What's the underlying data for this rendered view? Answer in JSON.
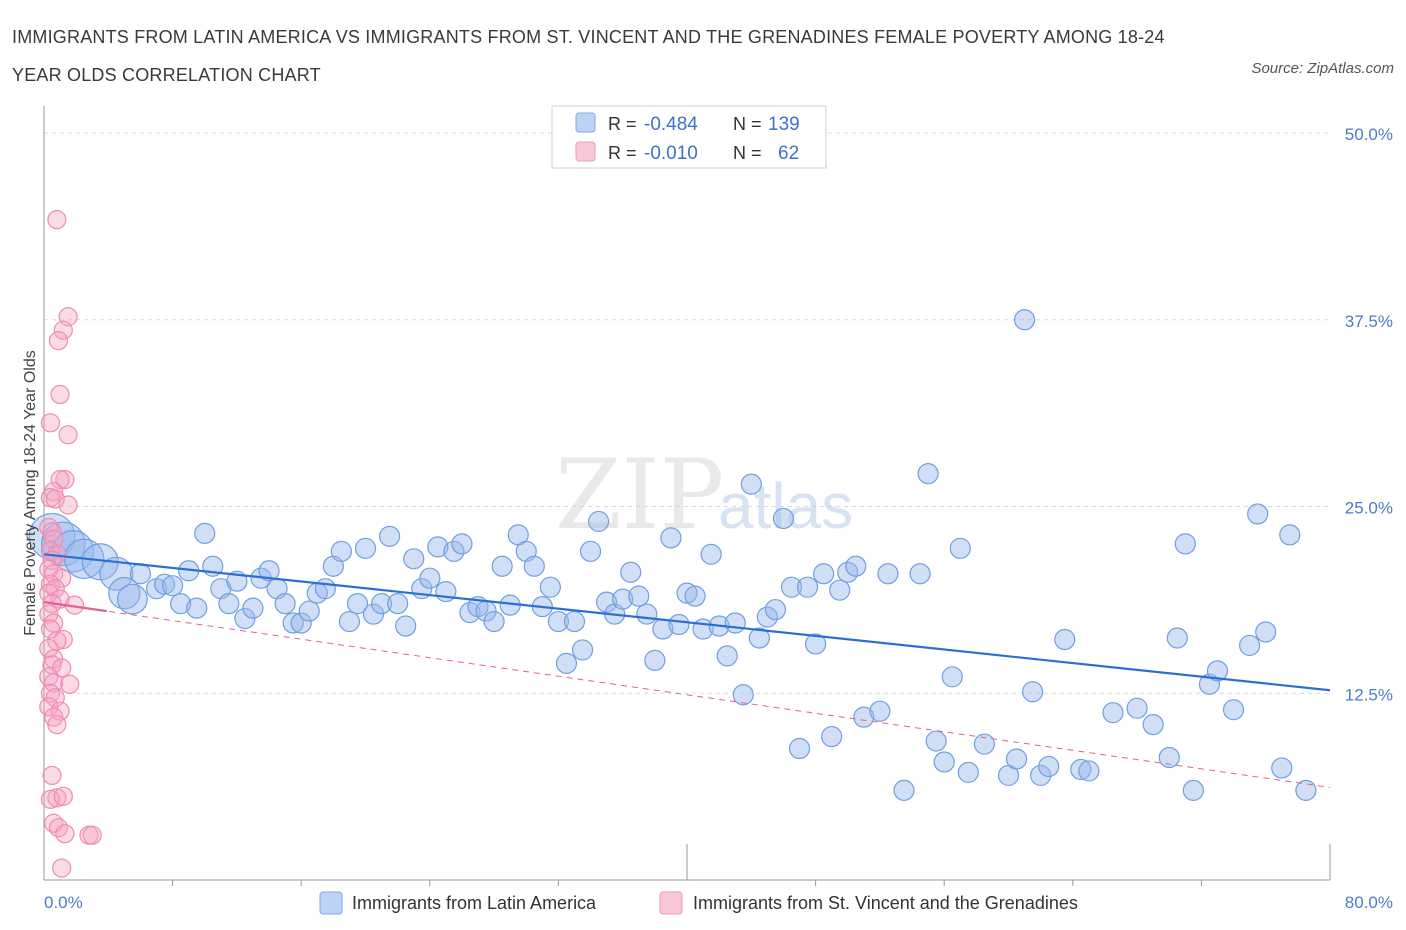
{
  "title": "IMMIGRANTS FROM LATIN AMERICA VS IMMIGRANTS FROM ST. VINCENT AND THE GRENADINES FEMALE POVERTY AMONG 18-24 YEAR OLDS CORRELATION CHART",
  "source": "Source: ZipAtlas.com",
  "watermark": {
    "zip": "ZIP",
    "atlas": "atlas"
  },
  "colors": {
    "blue": "#6f9fe0",
    "blue_line": "#2b6fd1",
    "pink": "#ef8bb0",
    "pink_line": "#e0628f",
    "grid": "#d9d9d9"
  },
  "legend": {
    "rows": [
      {
        "r_label": "R =",
        "r_value": "-0.484",
        "n_label": "N =",
        "n_value": "139"
      },
      {
        "r_label": "R =",
        "r_value": "-0.010",
        "n_label": "N =",
        "n_value": "62"
      }
    ]
  },
  "chart_data": {
    "type": "scatter",
    "ylabel": "Female Poverty Among 18-24 Year Olds",
    "xlim": [
      0,
      80
    ],
    "ylim": [
      0,
      50
    ],
    "x_tick_labels": [
      "0.0%",
      "80.0%"
    ],
    "y_tick_labels": [
      "12.5%",
      "25.0%",
      "37.5%",
      "50.0%"
    ],
    "y_ticks": [
      12.5,
      25,
      37.5,
      50
    ],
    "grid": true,
    "legend_position": "top-center",
    "series": [
      {
        "name": "Immigrants from Latin America",
        "color": "#6f9fe0",
        "trend": [
          [
            0,
            21.8
          ],
          [
            80,
            12.7
          ]
        ],
        "points": [
          [
            0.5,
            23.0
          ],
          [
            1.2,
            22.5
          ],
          [
            1.8,
            22.0
          ],
          [
            2.5,
            21.5
          ],
          [
            3.5,
            21.3
          ],
          [
            4.5,
            20.5
          ],
          [
            5.0,
            19.2
          ],
          [
            5.5,
            18.8
          ],
          [
            6.0,
            20.5
          ],
          [
            7.0,
            19.5
          ],
          [
            7.5,
            19.8
          ],
          [
            8.0,
            19.7
          ],
          [
            8.5,
            18.5
          ],
          [
            9.0,
            20.7
          ],
          [
            9.5,
            18.2
          ],
          [
            10.0,
            23.2
          ],
          [
            10.5,
            21.0
          ],
          [
            11.0,
            19.5
          ],
          [
            11.5,
            18.5
          ],
          [
            12.0,
            20.0
          ],
          [
            12.5,
            17.5
          ],
          [
            13.0,
            18.2
          ],
          [
            13.5,
            20.2
          ],
          [
            14.0,
            20.7
          ],
          [
            14.5,
            19.5
          ],
          [
            15.0,
            18.5
          ],
          [
            15.5,
            17.2
          ],
          [
            16.0,
            17.2
          ],
          [
            16.5,
            18.0
          ],
          [
            17.0,
            19.2
          ],
          [
            17.5,
            19.5
          ],
          [
            18.0,
            21.0
          ],
          [
            18.5,
            22.0
          ],
          [
            19.0,
            17.3
          ],
          [
            19.5,
            18.5
          ],
          [
            20.0,
            22.2
          ],
          [
            20.5,
            17.8
          ],
          [
            21.0,
            18.5
          ],
          [
            21.5,
            23.0
          ],
          [
            22.0,
            18.5
          ],
          [
            22.5,
            17.0
          ],
          [
            23.0,
            21.5
          ],
          [
            23.5,
            19.5
          ],
          [
            24.0,
            20.2
          ],
          [
            24.5,
            22.3
          ],
          [
            25.0,
            19.3
          ],
          [
            25.5,
            22.0
          ],
          [
            26.0,
            22.5
          ],
          [
            26.5,
            17.9
          ],
          [
            27.0,
            18.3
          ],
          [
            27.5,
            18.0
          ],
          [
            28.0,
            17.3
          ],
          [
            28.5,
            21.0
          ],
          [
            29.0,
            18.4
          ],
          [
            29.5,
            23.1
          ],
          [
            30.0,
            22.0
          ],
          [
            30.5,
            21.0
          ],
          [
            31.0,
            18.3
          ],
          [
            31.5,
            19.6
          ],
          [
            32.0,
            17.3
          ],
          [
            32.5,
            14.5
          ],
          [
            33.0,
            17.3
          ],
          [
            33.5,
            15.4
          ],
          [
            34.0,
            22.0
          ],
          [
            34.5,
            24.0
          ],
          [
            35.0,
            18.6
          ],
          [
            35.5,
            17.8
          ],
          [
            36.0,
            18.8
          ],
          [
            36.5,
            20.6
          ],
          [
            37.0,
            19.0
          ],
          [
            37.5,
            17.8
          ],
          [
            38.0,
            14.7
          ],
          [
            38.5,
            16.8
          ],
          [
            39.0,
            22.9
          ],
          [
            39.5,
            17.1
          ],
          [
            40.0,
            19.2
          ],
          [
            40.5,
            19.0
          ],
          [
            41.0,
            16.8
          ],
          [
            41.5,
            21.8
          ],
          [
            42.0,
            17.0
          ],
          [
            42.5,
            15.0
          ],
          [
            43.0,
            17.2
          ],
          [
            43.5,
            12.4
          ],
          [
            44.0,
            26.5
          ],
          [
            44.5,
            16.2
          ],
          [
            45.0,
            17.6
          ],
          [
            45.5,
            18.1
          ],
          [
            46.0,
            24.2
          ],
          [
            46.5,
            19.6
          ],
          [
            47.0,
            8.8
          ],
          [
            47.5,
            19.6
          ],
          [
            48.0,
            15.8
          ],
          [
            48.5,
            20.5
          ],
          [
            49.0,
            9.6
          ],
          [
            49.5,
            19.4
          ],
          [
            50.0,
            20.6
          ],
          [
            50.5,
            21.0
          ],
          [
            51.0,
            10.9
          ],
          [
            52.0,
            11.3
          ],
          [
            52.5,
            20.5
          ],
          [
            53.5,
            6.0
          ],
          [
            54.5,
            20.5
          ],
          [
            55.0,
            27.2
          ],
          [
            55.5,
            9.3
          ],
          [
            56.0,
            7.9
          ],
          [
            56.5,
            13.6
          ],
          [
            57.0,
            22.2
          ],
          [
            57.5,
            7.2
          ],
          [
            58.5,
            9.1
          ],
          [
            60.0,
            7.0
          ],
          [
            60.5,
            8.1
          ],
          [
            61.0,
            37.5
          ],
          [
            61.5,
            12.6
          ],
          [
            62.0,
            7.0
          ],
          [
            62.5,
            7.6
          ],
          [
            63.5,
            16.1
          ],
          [
            64.5,
            7.4
          ],
          [
            65.0,
            7.3
          ],
          [
            66.5,
            11.2
          ],
          [
            68.0,
            11.5
          ],
          [
            69.0,
            10.4
          ],
          [
            70.0,
            8.2
          ],
          [
            70.5,
            16.2
          ],
          [
            71.0,
            22.5
          ],
          [
            71.5,
            6.0
          ],
          [
            72.5,
            13.1
          ],
          [
            73.0,
            14.0
          ],
          [
            74.0,
            11.4
          ],
          [
            75.0,
            15.7
          ],
          [
            75.5,
            24.5
          ],
          [
            76.0,
            16.6
          ],
          [
            77.0,
            7.5
          ],
          [
            77.5,
            23.1
          ],
          [
            78.5,
            6.0
          ]
        ]
      },
      {
        "name": "Immigrants from St. Vincent and the Grenadines",
        "color": "#ef8bb0",
        "trend": [
          [
            0,
            18.6
          ],
          [
            80,
            6.2
          ]
        ],
        "points": [
          [
            0.8,
            44.2
          ],
          [
            1.5,
            37.7
          ],
          [
            1.2,
            36.8
          ],
          [
            0.9,
            36.1
          ],
          [
            1.0,
            32.5
          ],
          [
            0.4,
            30.6
          ],
          [
            1.5,
            29.8
          ],
          [
            1.3,
            26.8
          ],
          [
            1.0,
            26.8
          ],
          [
            0.6,
            26.0
          ],
          [
            0.4,
            25.6
          ],
          [
            0.7,
            25.5
          ],
          [
            1.5,
            25.1
          ],
          [
            0.3,
            23.6
          ],
          [
            0.5,
            23.3
          ],
          [
            0.6,
            22.8
          ],
          [
            0.4,
            22.0
          ],
          [
            0.8,
            21.8
          ],
          [
            0.5,
            21.4
          ],
          [
            0.3,
            20.8
          ],
          [
            0.6,
            20.5
          ],
          [
            1.1,
            20.2
          ],
          [
            0.4,
            19.8
          ],
          [
            0.7,
            19.5
          ],
          [
            0.3,
            19.2
          ],
          [
            1.0,
            18.8
          ],
          [
            0.5,
            18.5
          ],
          [
            1.9,
            18.4
          ],
          [
            0.3,
            17.8
          ],
          [
            0.6,
            17.2
          ],
          [
            0.4,
            16.8
          ],
          [
            1.2,
            16.1
          ],
          [
            0.8,
            16.0
          ],
          [
            0.3,
            15.5
          ],
          [
            0.6,
            14.8
          ],
          [
            0.5,
            14.4
          ],
          [
            1.1,
            14.2
          ],
          [
            0.3,
            13.6
          ],
          [
            0.6,
            13.2
          ],
          [
            1.6,
            13.1
          ],
          [
            0.4,
            12.5
          ],
          [
            0.7,
            12.2
          ],
          [
            0.3,
            11.6
          ],
          [
            1.0,
            11.3
          ],
          [
            0.6,
            10.9
          ],
          [
            0.8,
            10.4
          ],
          [
            0.5,
            7.0
          ],
          [
            0.8,
            5.5
          ],
          [
            0.4,
            5.4
          ],
          [
            1.2,
            5.6
          ],
          [
            0.6,
            3.8
          ],
          [
            0.9,
            3.5
          ],
          [
            1.3,
            3.1
          ],
          [
            2.8,
            3.0
          ],
          [
            3.0,
            3.0
          ],
          [
            1.1,
            0.8
          ]
        ]
      }
    ]
  },
  "bottom_legend": [
    {
      "label": "Immigrants from Latin America"
    },
    {
      "label": "Immigrants from St. Vincent and the Grenadines"
    }
  ]
}
